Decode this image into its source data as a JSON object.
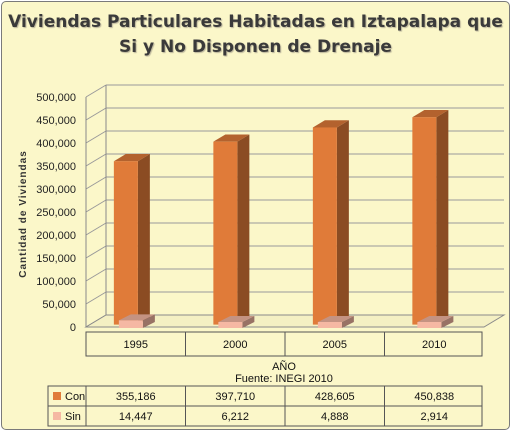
{
  "chart_data": {
    "type": "bar",
    "title_line1": "Viviendas Particulares Habitadas en Iztapalapa que",
    "title_line2": "Si y No Disponen de Drenaje",
    "ylabel": "Cantidad de Viviendas",
    "xlabel": "AÑO",
    "source": "Fuente: INEGI 2010",
    "categories": [
      "1995",
      "2000",
      "2005",
      "2010"
    ],
    "ylim": [
      0,
      500000
    ],
    "yticks": [
      "0",
      "50,000",
      "100,000",
      "150,000",
      "200,000",
      "250,000",
      "300,000",
      "350,000",
      "400,000",
      "450,000",
      "500,000"
    ],
    "grid": true,
    "legend": "data-table",
    "series": [
      {
        "name": "Con",
        "values": [
          355186,
          397710,
          428605,
          450838
        ],
        "labels": [
          "355,186",
          "397,710",
          "428,605",
          "450,838"
        ],
        "color": "#e07b39"
      },
      {
        "name": "Sin",
        "values": [
          14447,
          6212,
          4888,
          2914
        ],
        "labels": [
          "14,447",
          "6,212",
          "4,888",
          "2,914"
        ],
        "color": "#f5b8a3"
      }
    ]
  }
}
